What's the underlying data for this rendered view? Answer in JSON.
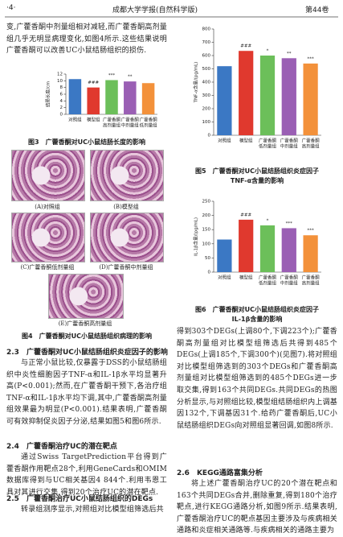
{
  "header": {
    "page": "·4·",
    "journal": "成都大学学报(自然科学版)",
    "volume": "第44卷"
  },
  "left_column": {
    "intro": "变,广藿香酮中剂量组相对减轻,而广藿香酮高剂量组几乎无明显病理变化,如图4所示.这些结果说明广藿香酮可以改善UC小鼠结肠组织的损伤.",
    "figure_4": {
      "panels": [
        "(A)对照组",
        "(B)模型组",
        "(C)广藿香酮低剂量组",
        "(D)广藿香酮中剂量组",
        "(E)广藿香酮高剂量组"
      ],
      "caption": "图4　广藿香酮对UC小鼠结肠组织病理的影响"
    },
    "s23_heading": "2.3　广藿香酮对UC小鼠结肠组织炎症因子的影响",
    "s23_text": "与正常小鼠比较,仅暴露于DSS的小鼠结肠组织中炎性细胞因子TNF-α和IL-1β水平均显著升高(P<0.001);然而,在广藿香酮干预下,各治疗组TNF-α和IL-1β水平均下调,其中,广藿香酮高剂量组效果最为明显(P<0.001).结果表明,广藿香酮可有效抑制促炎因子分泌,结果如图5和图6所示.",
    "s24_heading": "2.4　广藿香酮治疗UC的潜在靶点",
    "s24_text": "通过Swiss TargetPrediction平台得到广藿香酮作用靶点28个,利用GeneCards和OMIM数据库得到与UC相关基因4 844个.利用韦恩工具对其进行交集,得到20个治疗UC的潜在靶点.",
    "s25_heading": "2.5　广藿香酮治疗UC小鼠结肠组织的DEGs",
    "s25_text": "转录组测序显示,对照组对比模型组筛选后共"
  },
  "right_column": {
    "text": "得到303个DEGs(上调80个,下调223个);广藿香酮高剂量组对比模型组筛选后共得到485个DEGs(上调185个,下调300个)(见图7).将对照组对比模型组筛选到的303个DEGs和广藿香酮高剂量组对比模型组筛选到的485个DEGs进一步取交集,得到163个共同DEGs.共同DEGs的热图分析显示,与对照组比较,模型组结肠组织内上调基因132个,下调基因31个.给药广藿香酮后,UC小鼠结肠组织DEGs向对照组显著回调,如图8所示.",
    "s26_heading": "2.6　KEGG通路富集分析",
    "s26_text": "将上述广藿香酮治疗UC的20个潜在靶点和163个共同DEGs合并,删除重复,得到180个治疗靶点,进行KEGG通路分析,如图9所示.结果表明,广藿香酮治疗UC的靶点基因主要涉及与疾病相关通路和炎症相关通路等.与疾病相关的通路主要为"
  },
  "chart_data": [
    {
      "type": "bar",
      "y_label": "结肠长度/cm",
      "categories": [
        [
          "对照组"
        ],
        [
          "模型组"
        ],
        [
          "广藿香酮",
          "高剂量组"
        ],
        [
          "广藿香酮",
          "中剂量组"
        ],
        [
          "广藿香酮",
          "低剂量组"
        ]
      ],
      "values": [
        10.5,
        8,
        10.2,
        9.8,
        9.3
      ],
      "annotations": [
        null,
        "###",
        "***",
        "**",
        null
      ],
      "colors": [
        "#3b78c4",
        "#e0392e",
        "#6cbf5a",
        "#9a5fb4",
        "#f3913a"
      ],
      "ylim": [
        0,
        12
      ],
      "yticks": [
        0,
        2,
        4,
        6,
        8,
        10,
        12
      ],
      "caption": "图3　广藿香酮对UC小鼠结肠长度的影响"
    },
    {
      "type": "bar",
      "y_label": "TNF-α含量/(pg/mL)",
      "categories": [
        [
          "对照组"
        ],
        [
          "模型组"
        ],
        [
          "广藿香酮",
          "低剂量组"
        ],
        [
          "广藿香酮",
          "中剂量组"
        ],
        [
          "广藿香酮",
          "高剂量组"
        ]
      ],
      "values": [
        520,
        635,
        600,
        580,
        540
      ],
      "annotations": [
        null,
        "###",
        "*",
        "**",
        "***"
      ],
      "colors": [
        "#3b78c4",
        "#e0392e",
        "#6cbf5a",
        "#9a5fb4",
        "#f3913a"
      ],
      "ylim": [
        0,
        800
      ],
      "yticks": [
        0,
        100,
        200,
        300,
        400,
        500,
        600,
        700,
        800
      ],
      "caption": [
        "图5　广藿香酮对UC小鼠结肠组织炎症因子",
        "TNF-α含量的影响"
      ]
    },
    {
      "type": "bar",
      "y_label": "IL-1β含量/(pg/mL)",
      "categories": [
        [
          "对照组"
        ],
        [
          "模型组"
        ],
        [
          "广藿香酮",
          "低剂量组"
        ],
        [
          "广藿香酮",
          "中剂量组"
        ],
        [
          "广藿香酮",
          "高剂量组"
        ]
      ],
      "values": [
        115,
        185,
        165,
        155,
        130
      ],
      "annotations": [
        null,
        "###",
        "*",
        "***",
        "***"
      ],
      "colors": [
        "#3b78c4",
        "#e0392e",
        "#6cbf5a",
        "#9a5fb4",
        "#f3913a"
      ],
      "ylim": [
        0,
        250
      ],
      "yticks": [
        0,
        50,
        100,
        150,
        200,
        250
      ],
      "caption": [
        "图6　广藿香酮对UC小鼠结肠组织炎症因子",
        "IL-1β含量的影响"
      ]
    }
  ]
}
